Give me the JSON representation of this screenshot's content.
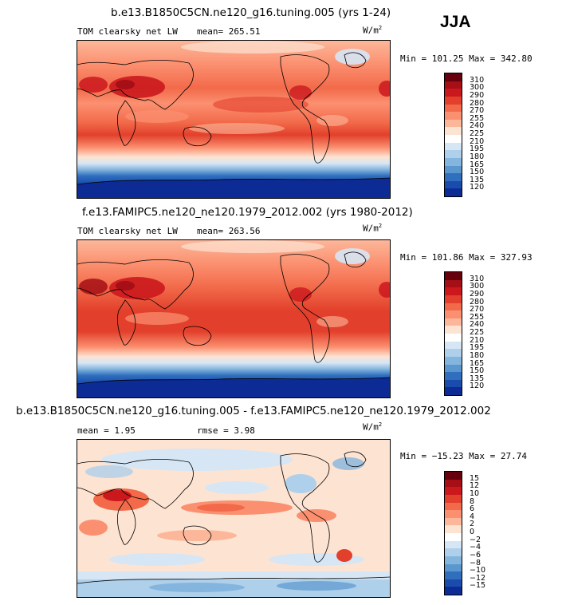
{
  "season": "JJA",
  "panels": [
    {
      "title": "b.e13.B1850C5CN.ne120_g16.tuning.005 (yrs 1-24)",
      "variable": "TOM clearsky net LW",
      "mean_label": "mean= 265.51",
      "units": "W/m",
      "units_exp": "2",
      "minmax": "Min = 101.25 Max = 342.80",
      "levels": [
        "310",
        "300",
        "290",
        "280",
        "270",
        "255",
        "240",
        "225",
        "210",
        "195",
        "180",
        "165",
        "150",
        "135",
        "120"
      ],
      "colors": [
        "#67000d",
        "#a50f15",
        "#cb181d",
        "#e2402c",
        "#f26a4a",
        "#fb9070",
        "#fcb79a",
        "#fde3d2",
        "#ffffff",
        "#d6e6f5",
        "#aed0eb",
        "#84b5de",
        "#5a97cf",
        "#2f6fbe",
        "#1a4cae",
        "#0d2b95"
      ]
    },
    {
      "title": "f.e13.FAMIPC5.ne120_ne120.1979_2012.002 (yrs 1980-2012)",
      "variable": "TOM clearsky net LW",
      "mean_label": "mean= 263.56",
      "units": "W/m",
      "units_exp": "2",
      "minmax": "Min = 101.86 Max = 327.93",
      "levels": [
        "310",
        "300",
        "290",
        "280",
        "270",
        "255",
        "240",
        "225",
        "210",
        "195",
        "180",
        "165",
        "150",
        "135",
        "120"
      ],
      "colors": [
        "#67000d",
        "#a50f15",
        "#cb181d",
        "#e2402c",
        "#f26a4a",
        "#fb9070",
        "#fcb79a",
        "#fde3d2",
        "#ffffff",
        "#d6e6f5",
        "#aed0eb",
        "#84b5de",
        "#5a97cf",
        "#2f6fbe",
        "#1a4cae",
        "#0d2b95"
      ]
    },
    {
      "title": "b.e13.B1850C5CN.ne120_g16.tuning.005 - f.e13.FAMIPC5.ne120_ne120.1979_2012.002",
      "mean_label": "mean =    1.95",
      "rmse_label": "rmse =    3.98",
      "units": "W/m",
      "units_exp": "2",
      "minmax": "Min = −15.23 Max =  27.74",
      "levels": [
        "15",
        "12",
        "10",
        "8",
        "6",
        "4",
        "2",
        "0",
        "−2",
        "−4",
        "−6",
        "−8",
        "−10",
        "−12",
        "−15"
      ],
      "colors": [
        "#67000d",
        "#a50f15",
        "#cb181d",
        "#e2402c",
        "#f26a4a",
        "#fb9070",
        "#fcb79a",
        "#fde3d2",
        "#ffffff",
        "#d6e6f5",
        "#aed0eb",
        "#84b5de",
        "#5a97cf",
        "#2f6fbe",
        "#1a4cae",
        "#0d2b95"
      ]
    }
  ]
}
